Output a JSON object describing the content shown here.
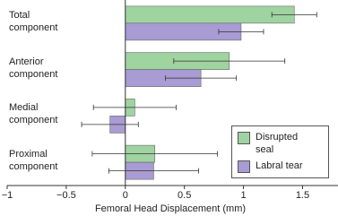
{
  "chart_data": {
    "type": "hbar",
    "categories": [
      "Total component",
      "Anterior component",
      "Medial component",
      "Proximal component"
    ],
    "series": [
      {
        "name": "Disrupted seal",
        "color": "#9fd3a0",
        "values": [
          1.43,
          0.88,
          0.08,
          0.25
        ],
        "errors": [
          0.19,
          0.47,
          0.35,
          0.53
        ]
      },
      {
        "name": "Labral tear",
        "color": "#a99bd3",
        "values": [
          0.98,
          0.64,
          -0.13,
          0.24
        ],
        "errors": [
          0.19,
          0.3,
          0.24,
          0.38
        ]
      }
    ],
    "xlabel": "Femoral Head Displacement (mm)",
    "xlim": [
      -1,
      1.8
    ],
    "xticks": [
      {
        "value": -1,
        "label": "−1"
      },
      {
        "value": -0.5,
        "label": "−0.5"
      },
      0,
      0.5,
      1,
      1.5
    ],
    "legend": "lower right"
  }
}
